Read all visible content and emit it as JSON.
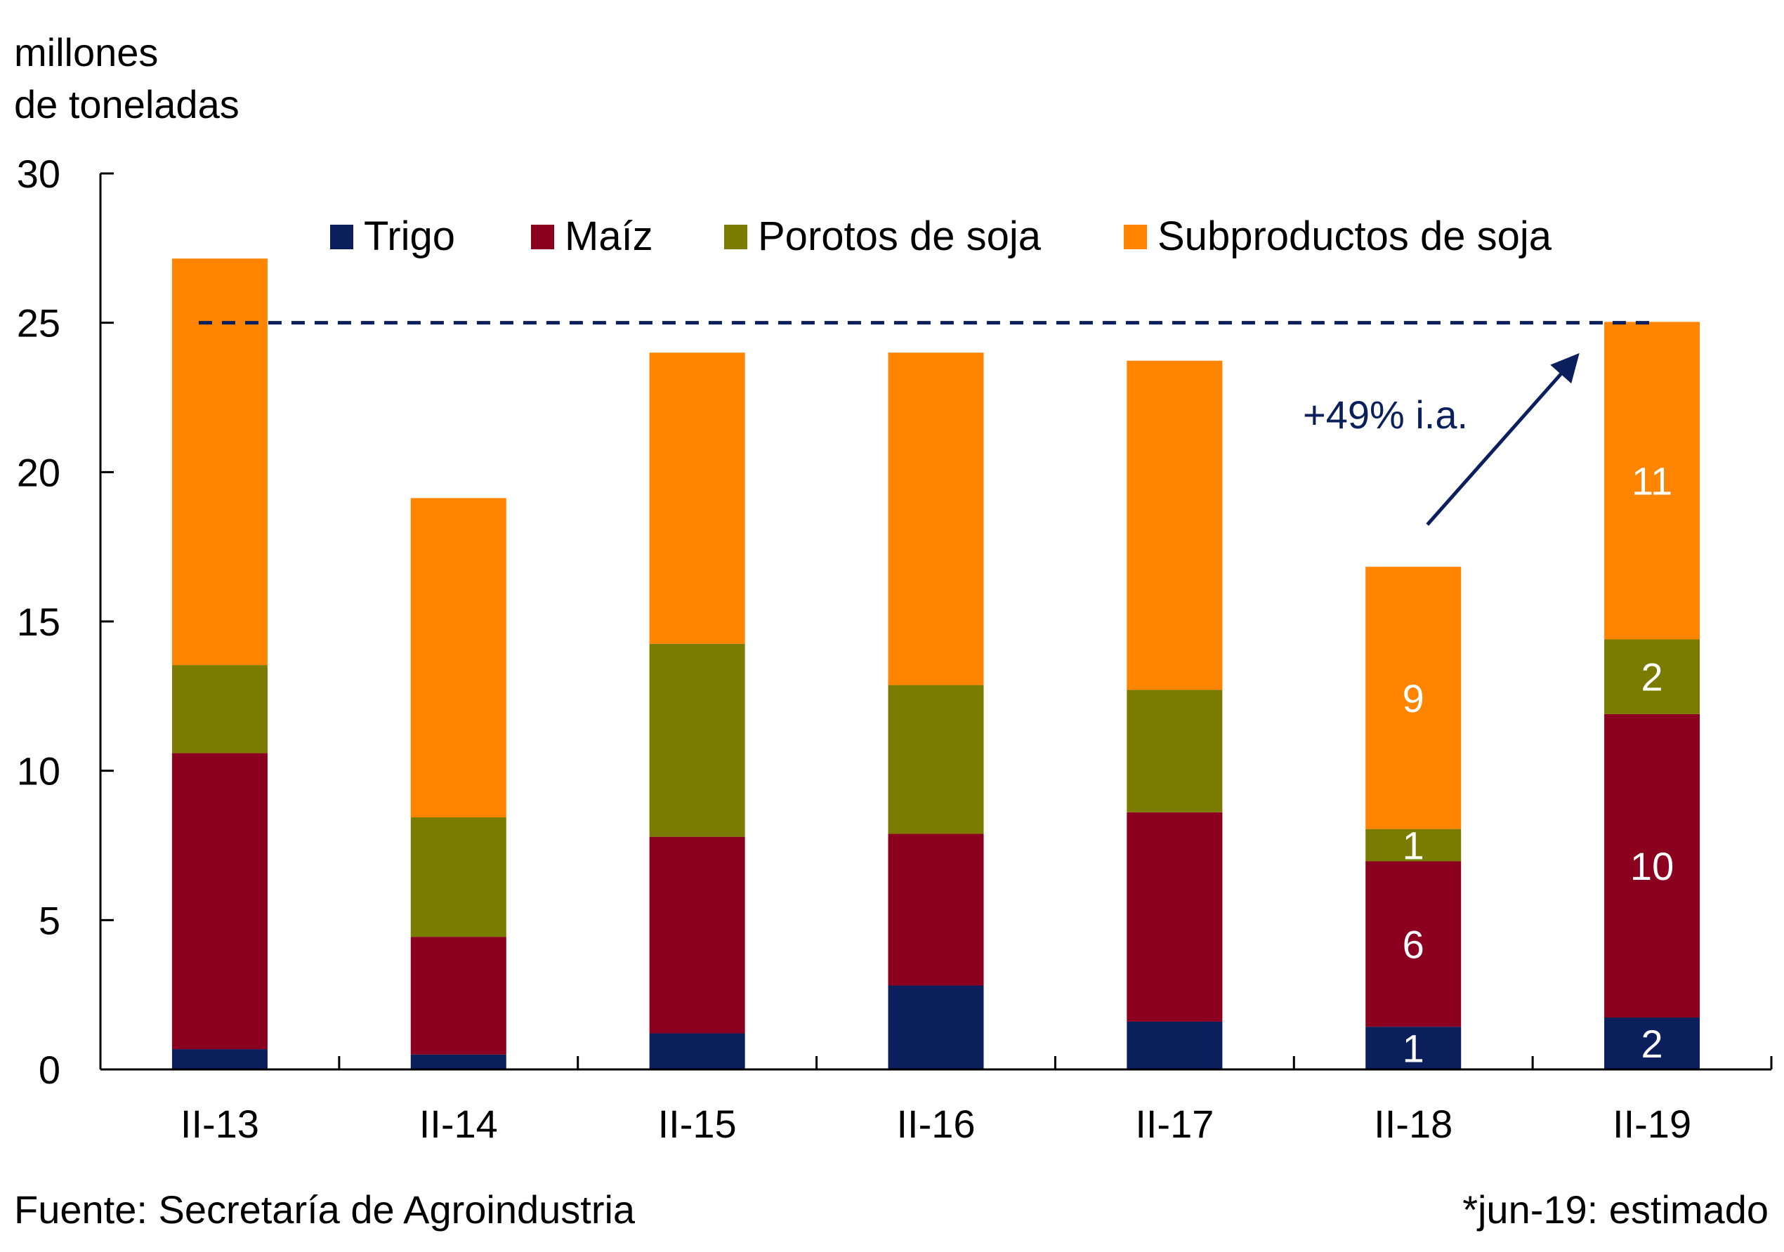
{
  "chart_data": {
    "type": "bar",
    "stacked": true,
    "title": "",
    "ylabel": "millones de toneladas",
    "ylabel_lines": [
      "millones",
      "de toneladas"
    ],
    "xlabel": "",
    "ylim": [
      0,
      30
    ],
    "yticks": [
      0,
      5,
      10,
      15,
      20,
      25,
      30
    ],
    "grid": false,
    "legend_position": "top",
    "categories": [
      "II-13",
      "II-14",
      "II-15",
      "II-16",
      "II-17",
      "II-18",
      "II-19"
    ],
    "series": [
      {
        "name": "Trigo",
        "color": "#0a1f5c",
        "values": [
          0.68,
          0.5,
          1.21,
          2.81,
          1.6,
          1.43,
          1.74
        ]
      },
      {
        "name": "Maíz",
        "color": "#8b001e",
        "values": [
          9.91,
          3.94,
          6.58,
          5.08,
          7.01,
          5.54,
          10.16
        ]
      },
      {
        "name": "Porotos de soja",
        "color": "#7a7c00",
        "values": [
          2.95,
          4.0,
          6.46,
          4.98,
          4.1,
          1.08,
          2.5
        ]
      },
      {
        "name": "Subproductos de soja",
        "color": "#ff8500",
        "values": [
          13.61,
          10.69,
          9.75,
          11.13,
          11.02,
          8.78,
          10.63
        ]
      }
    ],
    "data_labels": [
      {
        "category": "II-18",
        "series": "Trigo",
        "text": "1"
      },
      {
        "category": "II-18",
        "series": "Maíz",
        "text": "6"
      },
      {
        "category": "II-18",
        "series": "Porotos de soja",
        "text": "1"
      },
      {
        "category": "II-18",
        "series": "Subproductos de soja",
        "text": "9"
      },
      {
        "category": "II-19",
        "series": "Trigo",
        "text": "2"
      },
      {
        "category": "II-19",
        "series": "Maíz",
        "text": "10"
      },
      {
        "category": "II-19",
        "series": "Porotos de soja",
        "text": "2"
      },
      {
        "category": "II-19",
        "series": "Subproductos de soja",
        "text": "11"
      }
    ],
    "reference_line": {
      "value": 25,
      "style": "dashed",
      "color": "#0a1f5c",
      "from_category": "II-13",
      "to_category": "II-19"
    },
    "annotations": [
      {
        "text": "+49% i.a.",
        "color": "#0a1f5c",
        "type": "arrow",
        "from_category": "II-18",
        "to_category": "II-19"
      }
    ],
    "footer_source": "Fuente: Secretaría de Agroindustria",
    "footer_note": "*jun-19: estimado"
  }
}
